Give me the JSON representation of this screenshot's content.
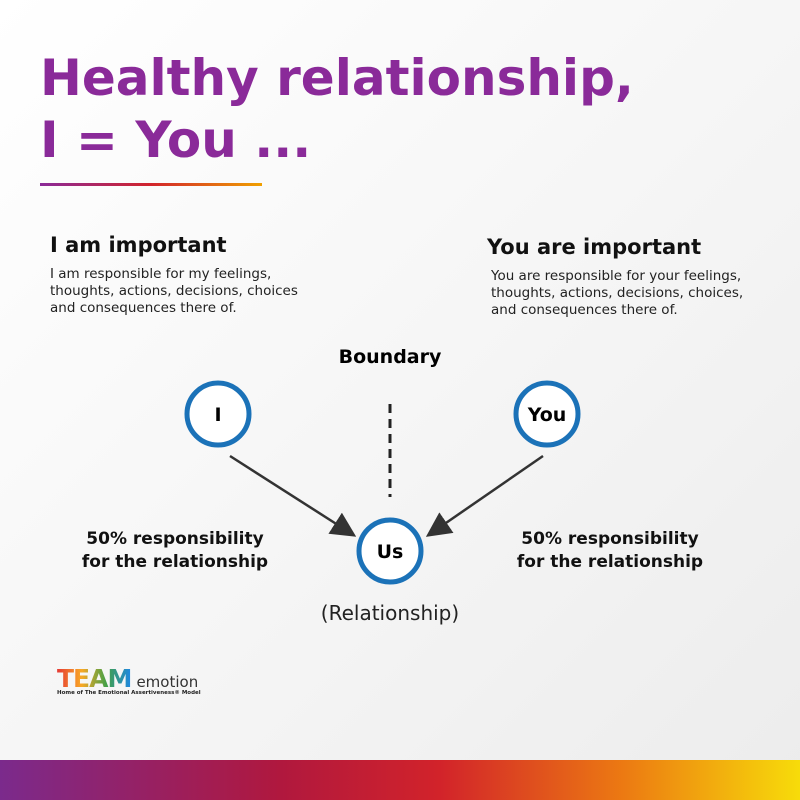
{
  "header": {
    "title_lines": [
      "Healthy relationship,",
      "I = You ..."
    ]
  },
  "left": {
    "heading": "I am important",
    "body_lines": [
      "I am responsible for my feelings,",
      "thoughts, actions, decisions, choices",
      "and consequences there of."
    ]
  },
  "right": {
    "heading": "You are important",
    "body_lines": [
      "You are responsible for your feelings,",
      "thoughts, actions, decisions, choices,",
      "and consequences there of."
    ]
  },
  "boundary": "Boundary",
  "nodes": [
    {
      "label": "I"
    },
    {
      "label": "You"
    },
    {
      "label": "Us"
    }
  ],
  "left_note_lines": [
    "50% responsibility",
    "for the relationship"
  ],
  "right_note_lines": [
    "50% responsibility",
    "for the relationship"
  ],
  "us_caption": "(Relationship)",
  "logo": {
    "team": "TEAM",
    "emotion": "emotion",
    "tagline": "Home of The Emotional Assertiveness® Model"
  }
}
